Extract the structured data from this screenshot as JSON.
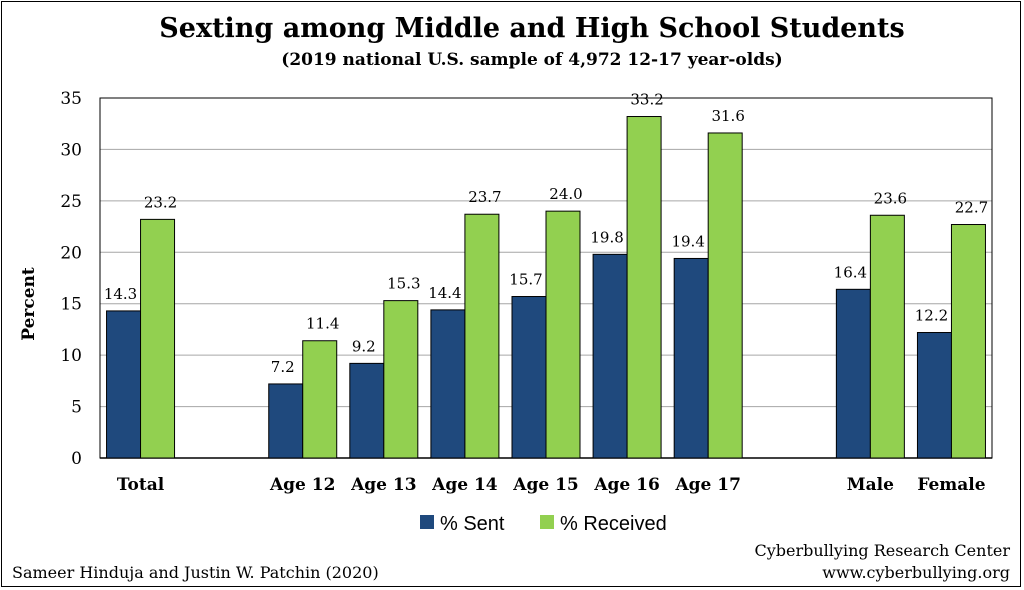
{
  "colors": {
    "sent": "#1f497d",
    "received": "#92d050",
    "grid": "#a6a6a6",
    "bar_stroke": "#000000"
  },
  "footer": {
    "left": "Sameer Hinduja and Justin W. Patchin (2020)",
    "right_line1": "Cyberbullying Research Center",
    "right_line2": "www.cyberbullying.org"
  },
  "chart_data": {
    "type": "bar",
    "title": "Sexting among Middle and High School Students",
    "subtitle": "(2019 national U.S. sample of 4,972 12-17 year-olds)",
    "xlabel": "",
    "ylabel": "Percent",
    "ylim": [
      0,
      35
    ],
    "yticks": [
      0,
      5,
      10,
      15,
      20,
      25,
      30,
      35
    ],
    "grid": true,
    "legend_position": "bottom",
    "categories": [
      "Total",
      "",
      "Age 12",
      "Age 13",
      "Age 14",
      "Age 15",
      "Age 16",
      "Age 17",
      "",
      "Male",
      "Female"
    ],
    "series": [
      {
        "name": "% Sent",
        "values": [
          14.3,
          null,
          7.2,
          9.2,
          14.4,
          15.7,
          19.8,
          19.4,
          null,
          16.4,
          12.2
        ]
      },
      {
        "name": "% Received",
        "values": [
          23.2,
          null,
          11.4,
          15.3,
          23.7,
          24.0,
          33.2,
          31.6,
          null,
          23.6,
          22.7
        ]
      }
    ]
  }
}
